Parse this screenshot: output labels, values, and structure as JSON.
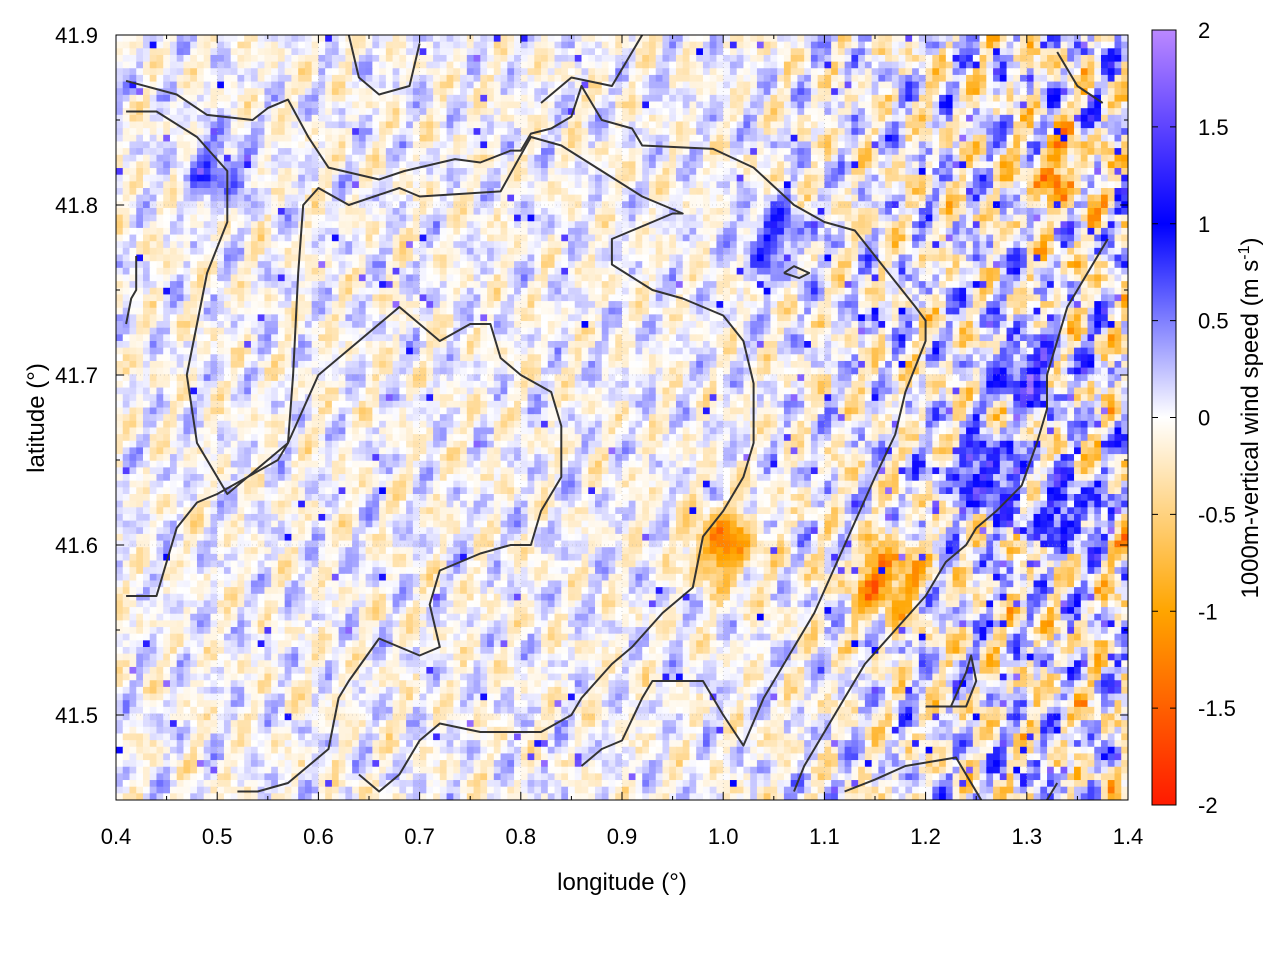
{
  "chart_data": {
    "type": "heatmap",
    "title": "",
    "xlabel": "longitude (°)",
    "ylabel": "latitude (°)",
    "colorbar_label": "1000m-vertical wind speed (m s",
    "colorbar_label_sup": "-1",
    "colorbar_label_end": ")",
    "xlim": [
      0.4,
      1.4
    ],
    "ylim": [
      41.45,
      41.9
    ],
    "zlim": [
      -2,
      2
    ],
    "x_ticks": [
      0.4,
      0.5,
      0.6,
      0.7,
      0.8,
      0.9,
      1.0,
      1.1,
      1.2,
      1.3,
      1.4
    ],
    "x_tick_labels": [
      "0.4",
      "0.5",
      "0.6",
      "0.7",
      "0.8",
      "0.9",
      "1.0",
      "1.1",
      "1.2",
      "1.3",
      "1.4"
    ],
    "y_ticks": [
      41.5,
      41.6,
      41.7,
      41.8,
      41.9
    ],
    "y_tick_labels": [
      "41.5",
      "41.6",
      "41.7",
      "41.8",
      "41.9"
    ],
    "z_ticks": [
      2,
      1.5,
      1,
      0.5,
      0,
      -0.5,
      -1,
      -1.5,
      -2
    ],
    "z_tick_labels": [
      "2",
      "1.5",
      "1",
      "0.5",
      "0",
      "-0.5",
      "-1",
      "-1.5",
      "-2"
    ],
    "grid": true,
    "colormap": [
      {
        "value": -2,
        "color": "#ff1a00"
      },
      {
        "value": -1,
        "color": "#ffa500"
      },
      {
        "value": 0,
        "color": "#ffffff"
      },
      {
        "value": 1,
        "color": "#0000ff"
      },
      {
        "value": 2,
        "color": "#bb88ff"
      }
    ],
    "contour_color": "#333333",
    "hotspots": [
      {
        "x": 1.0,
        "y": 41.6,
        "value": -1.6
      },
      {
        "x": 1.16,
        "y": 41.58,
        "value": -1.7
      },
      {
        "x": 1.33,
        "y": 41.82,
        "value": -1.2
      },
      {
        "x": 1.3,
        "y": 41.7,
        "value": 1.4
      },
      {
        "x": 1.26,
        "y": 41.64,
        "value": 1.5
      },
      {
        "x": 1.05,
        "y": 41.78,
        "value": 1.0
      },
      {
        "x": 0.5,
        "y": 41.82,
        "value": 0.8
      },
      {
        "x": 1.34,
        "y": 41.62,
        "value": 1.3
      }
    ],
    "contours": [
      [
        [
          0.41,
          41.873
        ],
        [
          0.46,
          41.865
        ],
        [
          0.49,
          41.853
        ],
        [
          0.535,
          41.85
        ],
        [
          0.55,
          41.857
        ],
        [
          0.57,
          41.862
        ],
        [
          0.59,
          41.84
        ],
        [
          0.61,
          41.822
        ],
        [
          0.66,
          41.815
        ],
        [
          0.685,
          41.82
        ],
        [
          0.735,
          41.827
        ],
        [
          0.76,
          41.825
        ],
        [
          0.79,
          41.832
        ],
        [
          0.8,
          41.832
        ],
        [
          0.81,
          41.842
        ],
        [
          0.83,
          41.845
        ],
        [
          0.85,
          41.852
        ],
        [
          0.86,
          41.87
        ],
        [
          0.88,
          41.85
        ],
        [
          0.91,
          41.845
        ],
        [
          0.92,
          41.835
        ],
        [
          0.99,
          41.833
        ],
        [
          1.03,
          41.822
        ],
        [
          1.07,
          41.8
        ],
        [
          1.1,
          41.79
        ],
        [
          1.13,
          41.785
        ],
        [
          1.15,
          41.77
        ],
        [
          1.17,
          41.755
        ],
        [
          1.19,
          41.74
        ],
        [
          1.2,
          41.732
        ],
        [
          1.2,
          41.72
        ],
        [
          1.18,
          41.69
        ],
        [
          1.17,
          41.665
        ],
        [
          1.15,
          41.64
        ],
        [
          1.12,
          41.6
        ],
        [
          1.09,
          41.56
        ],
        [
          1.06,
          41.53
        ],
        [
          1.04,
          41.51
        ],
        [
          1.02,
          41.482
        ],
        [
          1.0,
          41.5
        ],
        [
          0.98,
          41.52
        ],
        [
          0.95,
          41.52
        ],
        [
          0.93,
          41.52
        ],
        [
          0.92,
          41.51
        ],
        [
          0.9,
          41.485
        ],
        [
          0.88,
          41.48
        ],
        [
          0.86,
          41.47
        ]
      ],
      [
        [
          0.41,
          41.855
        ],
        [
          0.44,
          41.855
        ],
        [
          0.48,
          41.84
        ],
        [
          0.51,
          41.82
        ],
        [
          0.51,
          41.79
        ],
        [
          0.49,
          41.76
        ],
        [
          0.48,
          41.73
        ],
        [
          0.47,
          41.7
        ],
        [
          0.48,
          41.66
        ],
        [
          0.5,
          41.64
        ],
        [
          0.51,
          41.63
        ],
        [
          0.53,
          41.64
        ],
        [
          0.56,
          41.65
        ],
        [
          0.57,
          41.66
        ],
        [
          0.575,
          41.7
        ],
        [
          0.58,
          41.76
        ],
        [
          0.585,
          41.8
        ],
        [
          0.6,
          41.81
        ],
        [
          0.63,
          41.8
        ],
        [
          0.68,
          41.81
        ],
        [
          0.7,
          41.805
        ],
        [
          0.78,
          41.808
        ],
        [
          0.81,
          41.84
        ],
        [
          0.84,
          41.835
        ],
        [
          0.88,
          41.82
        ],
        [
          0.92,
          41.805
        ],
        [
          0.96,
          41.795
        ],
        [
          0.95,
          41.795
        ],
        [
          0.91,
          41.785
        ],
        [
          0.89,
          41.78
        ],
        [
          0.89,
          41.765
        ],
        [
          0.93,
          41.75
        ],
        [
          0.96,
          41.745
        ],
        [
          0.98,
          41.74
        ],
        [
          1.0,
          41.735
        ],
        [
          1.02,
          41.72
        ],
        [
          1.03,
          41.695
        ],
        [
          1.03,
          41.66
        ],
        [
          1.02,
          41.64
        ],
        [
          1.0,
          41.62
        ],
        [
          0.98,
          41.605
        ],
        [
          0.97,
          41.575
        ],
        [
          0.94,
          41.56
        ],
        [
          0.91,
          41.54
        ],
        [
          0.89,
          41.53
        ],
        [
          0.86,
          41.51
        ],
        [
          0.85,
          41.5
        ],
        [
          0.82,
          41.49
        ],
        [
          0.8,
          41.49
        ],
        [
          0.76,
          41.49
        ],
        [
          0.72,
          41.495
        ],
        [
          0.7,
          41.485
        ],
        [
          0.68,
          41.465
        ],
        [
          0.66,
          41.455
        ],
        [
          0.64,
          41.465
        ]
      ],
      [
        [
          0.41,
          41.57
        ],
        [
          0.44,
          41.57
        ],
        [
          0.46,
          41.61
        ],
        [
          0.48,
          41.625
        ],
        [
          0.5,
          41.63
        ],
        [
          0.53,
          41.64
        ],
        [
          0.57,
          41.66
        ],
        [
          0.6,
          41.7
        ],
        [
          0.64,
          41.72
        ],
        [
          0.68,
          41.74
        ],
        [
          0.72,
          41.72
        ],
        [
          0.75,
          41.73
        ],
        [
          0.77,
          41.73
        ],
        [
          0.78,
          41.71
        ],
        [
          0.8,
          41.7
        ],
        [
          0.83,
          41.69
        ],
        [
          0.84,
          41.67
        ],
        [
          0.84,
          41.64
        ],
        [
          0.82,
          41.62
        ],
        [
          0.81,
          41.6
        ],
        [
          0.79,
          41.6
        ],
        [
          0.76,
          41.595
        ],
        [
          0.74,
          41.59
        ],
        [
          0.72,
          41.585
        ],
        [
          0.71,
          41.565
        ],
        [
          0.72,
          41.54
        ],
        [
          0.7,
          41.535
        ],
        [
          0.66,
          41.545
        ],
        [
          0.63,
          41.52
        ],
        [
          0.62,
          41.51
        ],
        [
          0.61,
          41.48
        ],
        [
          0.6,
          41.475
        ],
        [
          0.57,
          41.46
        ],
        [
          0.54,
          41.455
        ],
        [
          0.52,
          41.455
        ]
      ],
      [
        [
          1.2,
          41.505
        ],
        [
          1.24,
          41.505
        ],
        [
          1.25,
          41.52
        ],
        [
          1.245,
          41.535
        ],
        [
          1.24,
          41.525
        ],
        [
          1.225,
          41.505
        ]
      ],
      [
        [
          1.12,
          41.455
        ],
        [
          1.15,
          41.462
        ],
        [
          1.18,
          41.47
        ],
        [
          1.23,
          41.475
        ],
        [
          1.26,
          41.445
        ]
      ],
      [
        [
          1.375,
          41.86
        ],
        [
          1.35,
          41.87
        ],
        [
          1.34,
          41.88
        ],
        [
          1.33,
          41.89
        ]
      ],
      [
        [
          0.82,
          41.86
        ],
        [
          0.85,
          41.875
        ],
        [
          0.89,
          41.87
        ],
        [
          0.92,
          41.9
        ]
      ],
      [
        [
          1.06,
          41.76
        ],
        [
          1.075,
          41.757
        ],
        [
          1.085,
          41.76
        ],
        [
          1.07,
          41.764
        ],
        [
          1.06,
          41.76
        ]
      ],
      [
        [
          1.38,
          41.78
        ],
        [
          1.36,
          41.76
        ],
        [
          1.34,
          41.74
        ],
        [
          1.33,
          41.72
        ],
        [
          1.32,
          41.7
        ],
        [
          1.32,
          41.68
        ],
        [
          1.31,
          41.66
        ],
        [
          1.295,
          41.635
        ],
        [
          1.27,
          41.62
        ],
        [
          1.25,
          41.61
        ],
        [
          1.24,
          41.6
        ],
        [
          1.22,
          41.59
        ],
        [
          1.2,
          41.57
        ],
        [
          1.17,
          41.55
        ],
        [
          1.14,
          41.53
        ],
        [
          1.12,
          41.51
        ],
        [
          1.1,
          41.49
        ],
        [
          1.08,
          41.47
        ],
        [
          1.07,
          41.455
        ]
      ],
      [
        [
          1.32,
          41.45
        ],
        [
          1.325,
          41.455
        ],
        [
          1.33,
          41.46
        ]
      ],
      [
        [
          0.63,
          41.9
        ],
        [
          0.64,
          41.875
        ],
        [
          0.66,
          41.865
        ],
        [
          0.69,
          41.87
        ],
        [
          0.7,
          41.895
        ]
      ],
      [
        [
          0.41,
          41.73
        ],
        [
          0.415,
          41.745
        ],
        [
          0.42,
          41.75
        ],
        [
          0.42,
          41.77
        ]
      ]
    ]
  }
}
